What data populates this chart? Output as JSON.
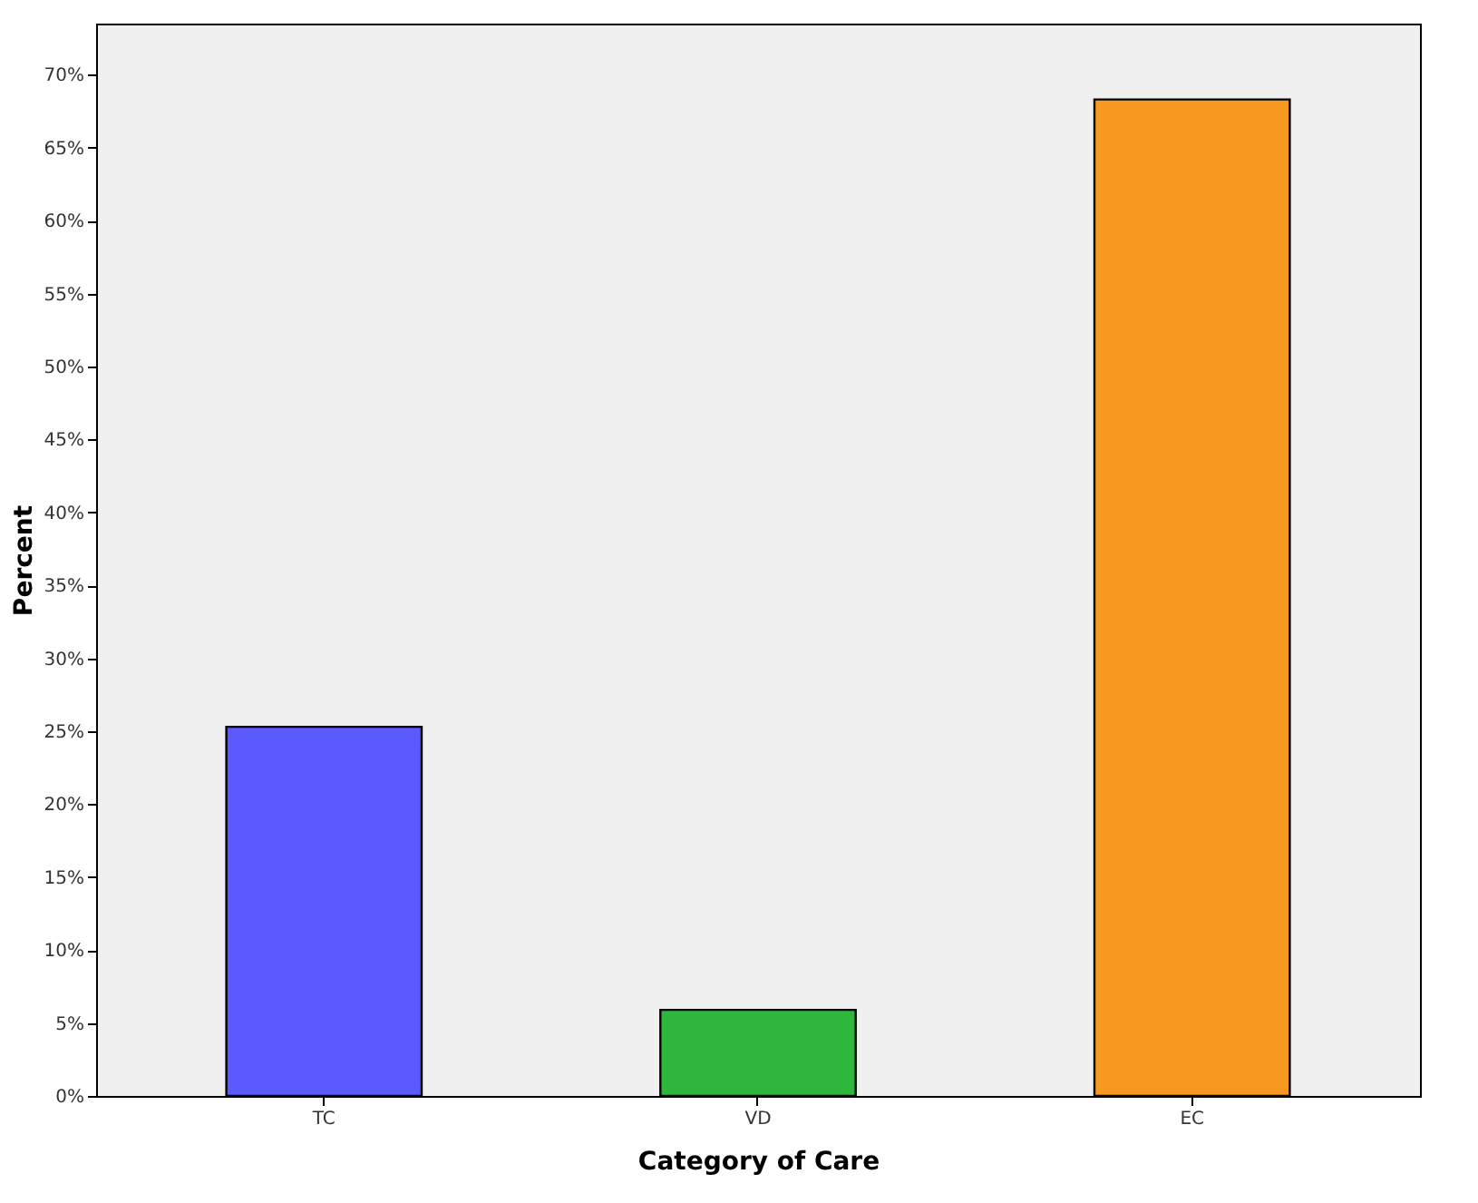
{
  "chart_data": {
    "type": "bar",
    "xlabel": "Category of Care",
    "ylabel": "Percent",
    "categories": [
      "TC",
      "VD",
      "EC"
    ],
    "values": [
      25.3,
      5.9,
      68.3
    ],
    "colors": [
      "#5a5aff",
      "#2db83d",
      "#f7991e"
    ],
    "ylim": [
      0,
      73.5
    ],
    "yticks": [
      {
        "value": 0,
        "label": "0%"
      },
      {
        "value": 5,
        "label": "5%"
      },
      {
        "value": 10,
        "label": "10%"
      },
      {
        "value": 15,
        "label": "15%"
      },
      {
        "value": 20,
        "label": "20%"
      },
      {
        "value": 25,
        "label": "25%"
      },
      {
        "value": 30,
        "label": "30%"
      },
      {
        "value": 35,
        "label": "35%"
      },
      {
        "value": 40,
        "label": "40%"
      },
      {
        "value": 45,
        "label": "45%"
      },
      {
        "value": 50,
        "label": "50%"
      },
      {
        "value": 55,
        "label": "55%"
      },
      {
        "value": 60,
        "label": "60%"
      },
      {
        "value": 65,
        "label": "65%"
      },
      {
        "value": 70,
        "label": "70%"
      }
    ],
    "grid": false
  }
}
